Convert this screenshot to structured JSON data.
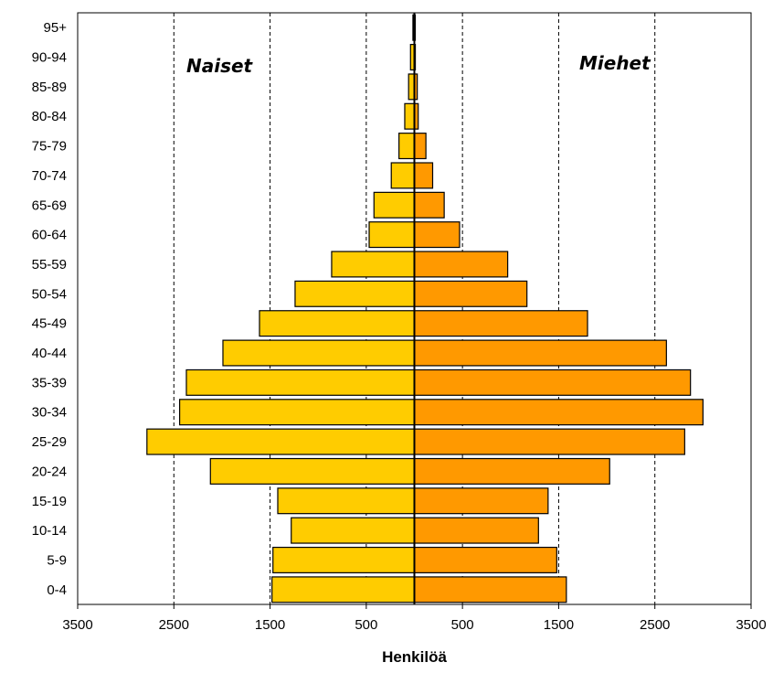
{
  "chart_data": {
    "type": "bar",
    "orientation": "horizontal",
    "subtype": "population-pyramid",
    "categories": [
      "0-4",
      "5-9",
      "10-14",
      "15-19",
      "20-24",
      "25-29",
      "30-34",
      "35-39",
      "40-44",
      "45-49",
      "50-54",
      "55-59",
      "60-64",
      "65-69",
      "70-74",
      "75-79",
      "80-84",
      "85-89",
      "90-94",
      "95+"
    ],
    "series": [
      {
        "name": "Naiset",
        "side": "left",
        "color": "#FFCC00",
        "values": [
          1480,
          1470,
          1280,
          1420,
          2120,
          2780,
          2440,
          2370,
          1990,
          1610,
          1240,
          860,
          470,
          420,
          240,
          160,
          100,
          60,
          40,
          15
        ]
      },
      {
        "name": "Miehet",
        "side": "right",
        "color": "#FF9900",
        "values": [
          1580,
          1480,
          1290,
          1390,
          2030,
          2810,
          3000,
          2870,
          2620,
          1800,
          1170,
          970,
          470,
          310,
          190,
          120,
          40,
          30,
          10,
          5
        ]
      }
    ],
    "xlabel": "Henkilöä",
    "x_tick_labels": [
      "3500",
      "2500",
      "1500",
      "500",
      "500",
      "1500",
      "2500",
      "3500"
    ],
    "xlim": [
      -3500,
      3500
    ],
    "grid": {
      "vertical_dashed": true,
      "at": [
        -2500,
        -1500,
        -500,
        500,
        1500,
        2500
      ]
    },
    "legend": "none (series names placed as labels inside plot: Naiset top-left, Miehet top-right)"
  }
}
